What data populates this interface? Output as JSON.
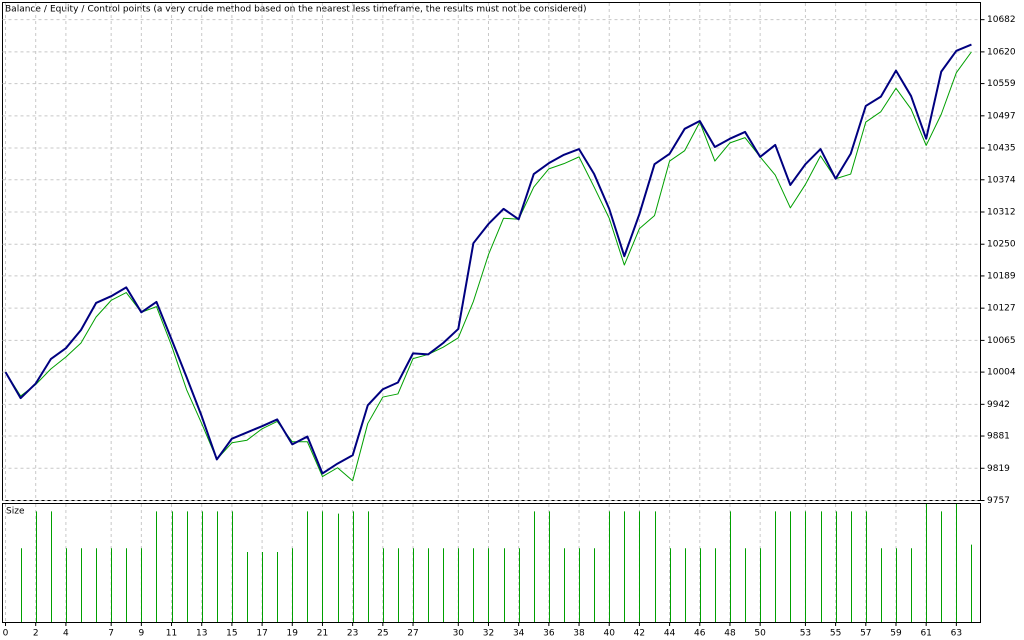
{
  "chart_data": [
    {
      "type": "line",
      "separator": "/",
      "note": {
        "text": "Control points (a very crude method based on the nearest less timeframe, the results must not be considered)",
        "color": "#ff0000"
      },
      "xlim": [
        -0.2,
        64.6
      ],
      "ylim": [
        9757,
        10715
      ],
      "yticks": [
        9757,
        9819,
        9881,
        9942,
        10004,
        10065,
        10127,
        10189,
        10250,
        10312,
        10374,
        10435,
        10497,
        10559,
        10620,
        10682
      ],
      "grid": true,
      "series": [
        {
          "name": "Balance",
          "color": "#000080",
          "width": 2,
          "values": [
            10004,
            9954,
            9982,
            10029,
            10050,
            10085,
            10137,
            10150,
            10167,
            10119,
            10139,
            10067,
            9994,
            9919,
            9836,
            9876,
            9888,
            9900,
            9913,
            9865,
            9880,
            9809,
            9828,
            9844,
            9940,
            9971,
            9984,
            10040,
            10038,
            10060,
            10087,
            10252,
            10289,
            10318,
            10298,
            10385,
            10406,
            10422,
            10433,
            10385,
            10318,
            10227,
            10308,
            10404,
            10424,
            10472,
            10487,
            10437,
            10453,
            10466,
            10418,
            10441,
            10364,
            10404,
            10433,
            10376,
            10424,
            10516,
            10534,
            10584,
            10535,
            10453,
            10582,
            10622,
            10634
          ]
        },
        {
          "name": "Equity",
          "color": "#00a000",
          "width": 1,
          "values": [
            10004,
            9958,
            9980,
            10010,
            10033,
            10060,
            10110,
            10142,
            10157,
            10119,
            10130,
            10055,
            9970,
            9905,
            9836,
            9868,
            9873,
            9895,
            9909,
            9870,
            9870,
            9803,
            9820,
            9795,
            9905,
            9956,
            9962,
            10030,
            10038,
            10052,
            10070,
            10140,
            10230,
            10300,
            10298,
            10360,
            10395,
            10405,
            10418,
            10360,
            10300,
            10210,
            10280,
            10305,
            10410,
            10430,
            10485,
            10410,
            10445,
            10455,
            10418,
            10383,
            10320,
            10365,
            10420,
            10376,
            10385,
            10485,
            10505,
            10550,
            10510,
            10440,
            10500,
            10580,
            10620
          ]
        }
      ]
    },
    {
      "type": "bar",
      "title": "Size",
      "color": "#00a000",
      "xlim": [
        -0.2,
        64.6
      ],
      "ylim": [
        0,
        0.16
      ],
      "xticks": [
        0,
        2,
        4,
        7,
        9,
        11,
        13,
        15,
        17,
        19,
        21,
        23,
        25,
        27,
        30,
        32,
        34,
        36,
        38,
        40,
        42,
        44,
        46,
        48,
        50,
        53,
        55,
        57,
        59,
        61,
        63
      ],
      "values": [
        null,
        0.1,
        0.15,
        0.15,
        0.1,
        0.1,
        0.1,
        0.1,
        0.1,
        0.1,
        0.15,
        0.15,
        0.15,
        0.15,
        0.15,
        0.15,
        0.095,
        0.095,
        0.095,
        0.1,
        0.15,
        0.15,
        0.147,
        0.15,
        0.15,
        0.1,
        0.1,
        0.1,
        0.1,
        0.1,
        0.1,
        0.1,
        0.1,
        0.1,
        0.1,
        0.15,
        0.15,
        0.1,
        0.1,
        0.1,
        0.15,
        0.15,
        0.15,
        0.15,
        0.1,
        0.1,
        0.1,
        0.1,
        0.15,
        0.1,
        0.1,
        0.15,
        0.15,
        0.15,
        0.15,
        0.15,
        0.15,
        0.15,
        0.1,
        0.1,
        0.1,
        0.16,
        0.15,
        0.16,
        0.105
      ]
    }
  ]
}
